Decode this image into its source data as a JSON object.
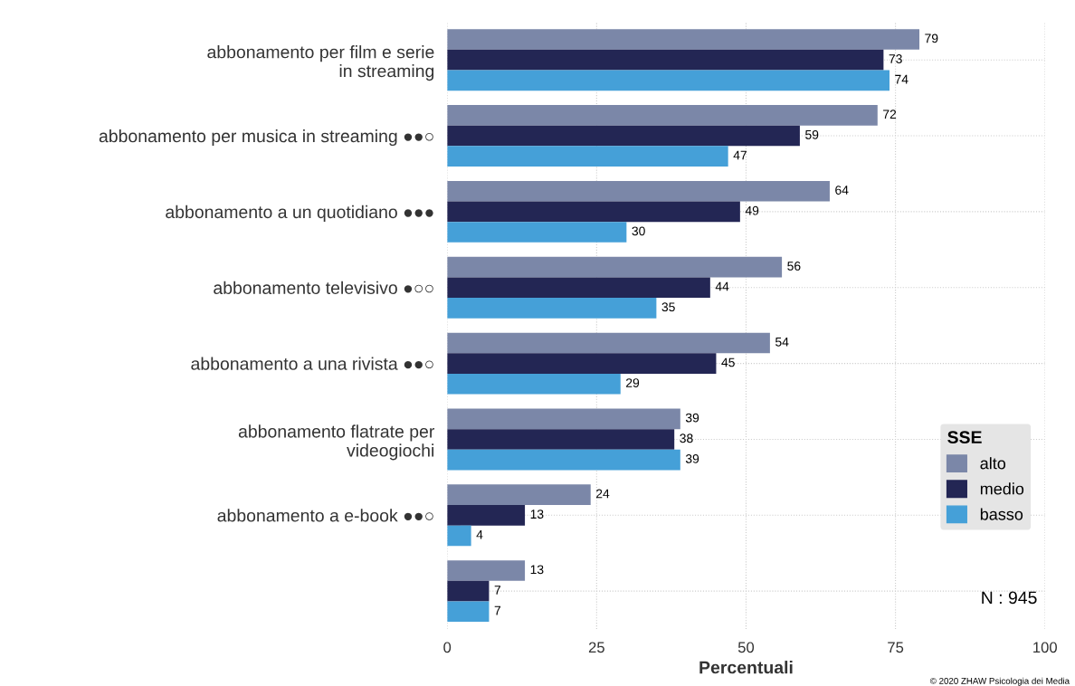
{
  "chart_data": {
    "type": "bar",
    "orientation": "horizontal",
    "xlabel": "Percentuali",
    "legend_title": "SSE",
    "categories": [
      "abbonamento per film e serie in streaming",
      "abbonamento per musica in streaming ●●○",
      "abbonamento a un quotidiano ●●●",
      "abbonamento televisivo ●○○",
      "abbonamento a una rivista ●●○",
      "abbonamento flatrate per videogiochi",
      "abbonamento a e-book ●●○",
      null
    ],
    "series": [
      {
        "name": "alto",
        "color": "#7b87a8",
        "values": [
          79,
          72,
          64,
          56,
          54,
          39,
          24,
          13
        ]
      },
      {
        "name": "medio",
        "color": "#232654",
        "values": [
          73,
          59,
          49,
          44,
          45,
          38,
          13,
          7
        ]
      },
      {
        "name": "basso",
        "color": "#45a0d8",
        "values": [
          74,
          47,
          30,
          35,
          29,
          39,
          4,
          7
        ]
      }
    ],
    "xlim": [
      0,
      100
    ],
    "xticks": [
      0,
      25,
      50,
      75,
      100
    ],
    "grid": true,
    "legend": "bottom right",
    "data_labels": true,
    "annotations": [
      "N : 945",
      "© 2020 ZHAW Psicologia dei Media"
    ]
  }
}
